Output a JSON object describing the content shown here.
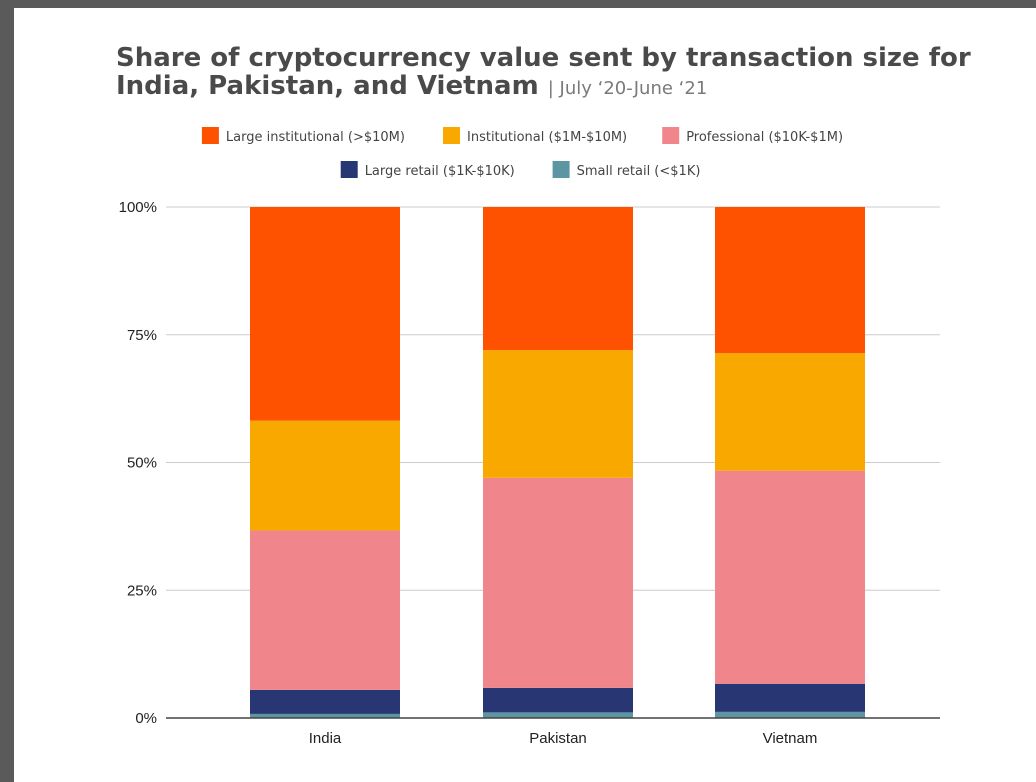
{
  "chart_data": {
    "type": "bar",
    "stacked": true,
    "title": "Share of cryptocurrency value sent by transaction size for India, Pakistan, and Vietnam",
    "subtitle": "| July ‘20-June ‘21",
    "categories": [
      "India",
      "Pakistan",
      "Vietnam"
    ],
    "series": [
      {
        "name": "Small retail (<$1K)",
        "color": "#5b96a2",
        "values": [
          0.8,
          1.1,
          1.2
        ]
      },
      {
        "name": "Large retail ($1K-$10K)",
        "color": "#283673",
        "values": [
          4.7,
          4.8,
          5.5
        ]
      },
      {
        "name": "Professional ($10K-$1M)",
        "color": "#f0868b",
        "values": [
          31.2,
          41.1,
          41.7
        ]
      },
      {
        "name": "Institutional ($1M-$10M)",
        "color": "#f9a800",
        "values": [
          21.5,
          25.0,
          23.0
        ]
      },
      {
        "name": "Large institutional (>$10M)",
        "color": "#ff5200",
        "values": [
          41.8,
          28.0,
          28.6
        ]
      }
    ],
    "legend_order": [
      4,
      3,
      2,
      1,
      0
    ],
    "y_ticks": [
      "0%",
      "25%",
      "50%",
      "75%",
      "100%"
    ],
    "y_tick_values": [
      0,
      25,
      50,
      75,
      100
    ],
    "ylim": [
      0,
      100
    ],
    "xlabel": "",
    "ylabel": "",
    "grid": true,
    "legend_position": "top"
  }
}
